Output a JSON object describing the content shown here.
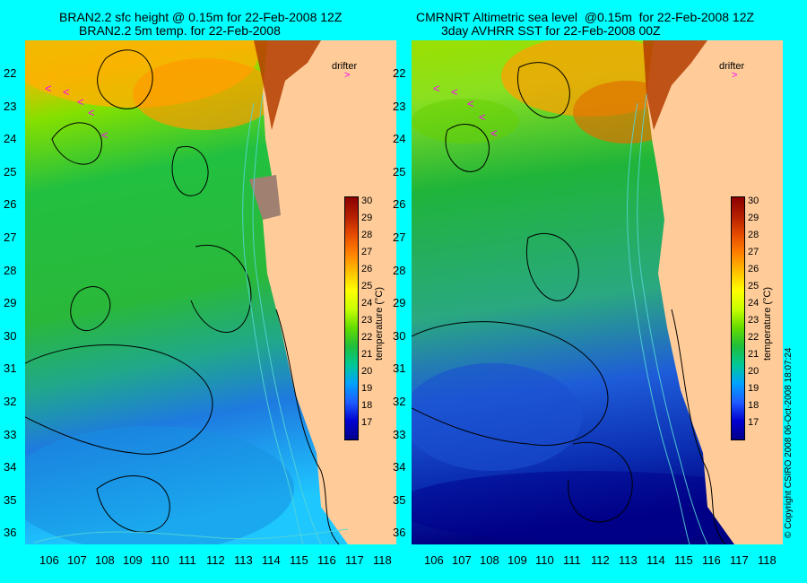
{
  "left_panel": {
    "title_line1": "BRAN2.2 sfc height @ 0.15m for 22-Feb-2008 12Z",
    "title_line2": "BRAN2.2 5m temp. for 22-Feb-2008"
  },
  "right_panel": {
    "title_line1": "CMRNRT Altimetric sea level  @0.15m  for 22-Feb-2008 12Z",
    "title_line2": "3day AVHRR SST for 22-Feb-2008 00Z"
  },
  "lat_ticks": [
    "22",
    "23",
    "24",
    "25",
    "26",
    "27",
    "28",
    "29",
    "30",
    "31",
    "32",
    "33",
    "34",
    "35",
    "36"
  ],
  "lon_ticks": [
    "106",
    "107",
    "108",
    "109",
    "110",
    "111",
    "112",
    "113",
    "114",
    "115",
    "116",
    "117",
    "118"
  ],
  "colorbar": {
    "labels": [
      "30",
      "29",
      "28",
      "27",
      "26",
      "25",
      "24",
      "23",
      "22",
      "21",
      "20",
      "19",
      "18",
      "17"
    ],
    "title": "temperature (°C)",
    "colors": [
      "#00008b",
      "#0000d0",
      "#1e5cff",
      "#00a2ff",
      "#00c896",
      "#1fbe3c",
      "#64dc00",
      "#c8ff00",
      "#ffff00",
      "#ffc000",
      "#ff8000",
      "#e64b00",
      "#b41e00",
      "#8b0000"
    ]
  },
  "legend": {
    "drifter_label": "drifter"
  },
  "copyright": "© Copyright CSIRO 2008    06-Oct-2008 18:07:24",
  "map": {
    "land_color": "#ffcc99",
    "contour_color": "#000000",
    "bathymetry_color": "#55d5d5"
  }
}
